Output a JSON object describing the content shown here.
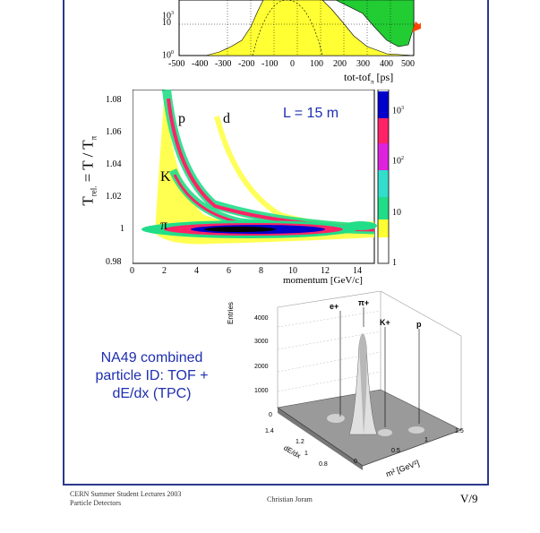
{
  "top_plot": {
    "x_ticks": [
      "-500",
      "-400",
      "-300",
      "-200",
      "-100",
      "0",
      "100",
      "200",
      "300",
      "400",
      "500"
    ],
    "y_ticks": [
      "10",
      "10",
      "10"
    ],
    "y_tick_exponents": [
      "3",
      "",
      "0"
    ],
    "x_label": "tot-tof",
    "x_label_sub": "π",
    "x_label_unit": "[ps]",
    "colors": {
      "fill": "#ffff33",
      "green": "#22cc33",
      "arrow": "#ff4400"
    }
  },
  "middle_plot": {
    "annotation": "L = 15 m",
    "y_label": "T",
    "y_label_sub": "rel.",
    "y_label_rest": " = T / T",
    "y_label_rest_sub": "π",
    "x_label": "momentum [GeV/c]",
    "y_ticks": [
      "1.08",
      "1.06",
      "1.04",
      "1.02",
      "1",
      "0.98"
    ],
    "x_ticks": [
      "0",
      "2",
      "4",
      "6",
      "8",
      "10",
      "12",
      "14"
    ],
    "particle_labels": [
      "p",
      "d",
      "K",
      "π"
    ],
    "colorbar_ticks": [
      "10",
      "10",
      "10",
      "1"
    ],
    "colorbar_exponents": [
      "3",
      "2",
      "",
      ""
    ],
    "colors": {
      "band_low": "#ffff33",
      "band_mid": "#22dd88",
      "band_hi": "#ff2266",
      "core": "#0000cc",
      "text": "#1f2fb0"
    }
  },
  "lego_plot": {
    "z_label": "Entries",
    "z_ticks": [
      "4000",
      "3000",
      "2000",
      "1000",
      "0"
    ],
    "y_label": "dE/dx",
    "y_ticks": [
      "1.4",
      "1.2",
      "1",
      "0.8"
    ],
    "x_label": "m² [GeV²]",
    "x_ticks": [
      "0",
      "0.5",
      "1",
      "1.5"
    ],
    "peak_labels": [
      "e+",
      "π+",
      "K+",
      "p"
    ]
  },
  "caption": {
    "line1": "NA49 combined",
    "line2": "particle ID: TOF +",
    "line3": "dE/dx (TPC)"
  },
  "footer": {
    "left_line1": "CERN Summer Student Lectures 2003",
    "left_line2": "Particle Detectors",
    "center": "Christian Joram",
    "page": "V/9"
  }
}
